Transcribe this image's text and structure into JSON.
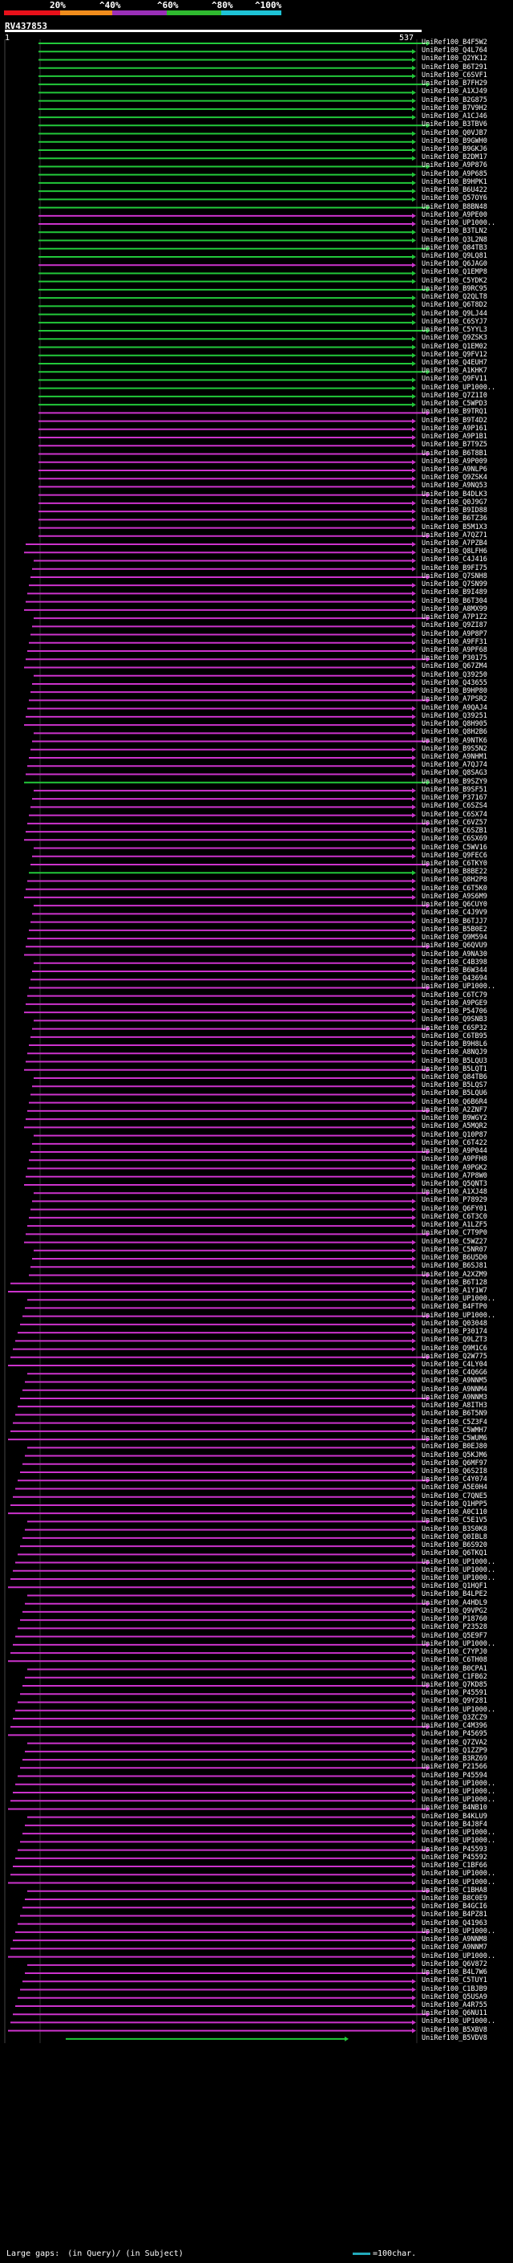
{
  "header": {
    "percent_labels": [
      "20%",
      "^40%",
      "^60%",
      "^80%",
      "^100%"
    ],
    "band_colors": [
      "#e8101a",
      "#f08c1c",
      "#9a2fb8",
      "#2fba2f",
      "#1ec3d6"
    ]
  },
  "query": {
    "id": "RV437853",
    "start": "1",
    "end": "537"
  },
  "colors": {
    "green": "#22c83a",
    "purple": "#cc33cc",
    "axis": "#6a6aff"
  },
  "hits": [
    "UniRef100_B4F5W2",
    "UniRef100_Q4L764",
    "UniRef100_Q2YK12",
    "UniRef100_B6T291",
    "UniRef100_C6SVF1",
    "UniRef100_B7FH29",
    "UniRef100_A1XJ49",
    "UniRef100_B2G875",
    "UniRef100_B7V9H2",
    "UniRef100_A1CJ46",
    "UniRef100_B3TBV6",
    "UniRef100_Q0VJB7",
    "UniRef100_B9GWH0",
    "UniRef100_B9GKJ6",
    "UniRef100_B2DM17",
    "UniRef100_A9P876",
    "UniRef100_A9P685",
    "UniRef100_B9HPK1",
    "UniRef100_B6U422",
    "UniRef100_Q57OY6",
    "UniRef100_B8BN48",
    "UniRef100_A9PE00",
    "UniRef100_UP1000..",
    "UniRef100_B3TLN2",
    "UniRef100_Q3L2N8",
    "UniRef100_Q84TB3",
    "UniRef100_Q9LQ81",
    "UniRef100_Q6JAG0",
    "UniRef100_Q1EMP8",
    "UniRef100_C5YDK2",
    "UniRef100_B9RC95",
    "UniRef100_Q2QLT8",
    "UniRef100_Q6T8D2",
    "UniRef100_Q9LJ44",
    "UniRef100_C6SYJ7",
    "UniRef100_C5YYL3",
    "UniRef100_Q9ZSK3",
    "UniRef100_Q1EM02",
    "UniRef100_Q9FV12",
    "UniRef100_Q4EUH7",
    "UniRef100_A1KHK7",
    "UniRef100_Q9FV11",
    "UniRef100_UP1000..",
    "UniRef100_Q7Z1I0",
    "UniRef100_C5WPD3",
    "UniRef100_B9TRQ1",
    "UniRef100_B9T4D2",
    "UniRef100_A9P161",
    "UniRef100_A9P1B1",
    "UniRef100_B7T9Z5",
    "UniRef100_B6T8B1",
    "UniRef100_A9P009",
    "UniRef100_A9NLP6",
    "UniRef100_Q9ZSK4",
    "UniRef100_A9NQ53",
    "UniRef100_B4DLK3",
    "UniRef100_Q0J9G7",
    "UniRef100_B9ID88",
    "UniRef100_B6TZ36",
    "UniRef100_B5M1X3",
    "UniRef100_A7QZ71",
    "UniRef100_A7PZB4",
    "UniRef100_Q8LFH6",
    "UniRef100_C4J416",
    "UniRef100_B9FI75",
    "UniRef100_Q7SNH8",
    "UniRef100_Q7SN99",
    "UniRef100_B9I489",
    "UniRef100_B6T304",
    "UniRef100_A8MX99",
    "UniRef100_A7P1Z2",
    "UniRef100_Q9ZI87",
    "UniRef100_A9P8P7",
    "UniRef100_A9FF31",
    "UniRef100_A9PF68",
    "UniRef100_P30175",
    "UniRef100_Q67ZM4",
    "UniRef100_Q39250",
    "UniRef100_Q43655",
    "UniRef100_B9HP80",
    "UniRef100_A7PSR2",
    "UniRef100_A9QAJ4",
    "UniRef100_Q39251",
    "UniRef100_Q8H905",
    "UniRef100_Q8H2B6",
    "UniRef100_A9NTK6",
    "UniRef100_B9S5N2",
    "UniRef100_A9NHM1",
    "UniRef100_A7QJ74",
    "UniRef100_Q8SAG3",
    "UniRef100_B9SZY9",
    "UniRef100_B9SF51",
    "UniRef100_P37167",
    "UniRef100_C6SZS4",
    "UniRef100_C6SX74",
    "UniRef100_C6VZ57",
    "UniRef100_C6SZB1",
    "UniRef100_C6SX69",
    "UniRef100_C5WV16",
    "UniRef100_Q9FEC6",
    "UniRef100_C6TKY0",
    "UniRef100_B8BE22",
    "UniRef100_Q8H2P8",
    "UniRef100_C6T5K0",
    "UniRef100_A9S6M9",
    "UniRef100_Q6CUY0",
    "UniRef100_C4J9V9",
    "UniRef100_B6TJJ7",
    "UniRef100_B5B0E2",
    "UniRef100_Q9M594",
    "UniRef100_Q6QVU9",
    "UniRef100_A9NA30",
    "UniRef100_C4B398",
    "UniRef100_B6W344",
    "UniRef100_Q43694",
    "UniRef100_UP1000..",
    "UniRef100_C6TC79",
    "UniRef100_A9PGE9",
    "UniRef100_P54706",
    "UniRef100_Q9SNB3",
    "UniRef100_C6SP32",
    "UniRef100_C6TB95",
    "UniRef100_B9H8L6",
    "UniRef100_A8NQJ9",
    "UniRef100_B5LQU3",
    "UniRef100_B5LQT1",
    "UniRef100_Q84TB6",
    "UniRef100_B5LQS7",
    "UniRef100_B5LQU6",
    "UniRef100_Q6B6R4",
    "UniRef100_A2ZNF7",
    "UniRef100_B9WGY2",
    "UniRef100_A5MQR2",
    "UniRef100_Q10P87",
    "UniRef100_C6T422",
    "UniRef100_A9P044",
    "UniRef100_A9PFH8",
    "UniRef100_A9PGK2",
    "UniRef100_A7P8W0",
    "UniRef100_Q5QNT3",
    "UniRef100_A1XJ48",
    "UniRef100_P78929",
    "UniRef100_Q6FY01",
    "UniRef100_C6T3C0",
    "UniRef100_A1LZF5",
    "UniRef100_C7T9P0",
    "UniRef100_C5WZ27",
    "UniRef100_C5NR07",
    "UniRef100_B6U5D0",
    "UniRef100_B6SJ81",
    "UniRef100_A2XZM9",
    "UniRef100_B6T128",
    "UniRef100_A1Y1W7",
    "UniRef100_UP1000..",
    "UniRef100_B4FTP0",
    "UniRef100_UP1000..",
    "UniRef100_Q03048",
    "UniRef100_P30174",
    "UniRef100_Q9LZT3",
    "UniRef100_Q9M1C6",
    "UniRef100_Q2W775",
    "UniRef100_C4LY04",
    "UniRef100_C4Q6G6",
    "UniRef100_A9NNM5",
    "UniRef100_A9NNM4",
    "UniRef100_A9NNM3",
    "UniRef100_A8ITH3",
    "UniRef100_B6T5N9",
    "UniRef100_C5Z3F4",
    "UniRef100_C5WMH7",
    "UniRef100_C5WUM6",
    "UniRef100_B0EJ80",
    "UniRef100_Q5KJM6",
    "UniRef100_Q6MF97",
    "UniRef100_Q6S2I8",
    "UniRef100_C4Y074",
    "UniRef100_A5E0H4",
    "UniRef100_C7QNE5",
    "UniRef100_Q1HPP5",
    "UniRef100_A0C110",
    "UniRef100_C5E1V5",
    "UniRef100_B3S0K8",
    "UniRef100_Q0IBL8",
    "UniRef100_B6S920",
    "UniRef100_Q6TKQ1",
    "UniRef100_UP1000..",
    "UniRef100_UP1000..",
    "UniRef100_UP1000..",
    "UniRef100_Q1HQF1",
    "UniRef100_B4LPE2",
    "UniRef100_A4HDL9",
    "UniRef100_Q9VPG2",
    "UniRef100_P18760",
    "UniRef100_P23528",
    "UniRef100_Q5E9F7",
    "UniRef100_UP1000..",
    "UniRef100_C7YPJ0",
    "UniRef100_C6TH08",
    "UniRef100_B0CPA1",
    "UniRef100_C1FB62",
    "UniRef100_Q7KD85",
    "UniRef100_P45591",
    "UniRef100_Q9Y281",
    "UniRef100_UP1000..",
    "UniRef100_Q3ZCZ9",
    "UniRef100_C4M396",
    "UniRef100_P45695",
    "UniRef100_Q7ZVA2",
    "UniRef100_Q1ZZP9",
    "UniRef100_B3RZ69",
    "UniRef100_P21566",
    "UniRef100_P45594",
    "UniRef100_UP1000..",
    "UniRef100_UP1000..",
    "UniRef100_UP1000..",
    "UniRef100_B4NB10",
    "UniRef100_B4KLU9",
    "UniRef100_B4J8F4",
    "UniRef100_UP1000..",
    "UniRef100_UP1000..",
    "UniRef100_P45593",
    "UniRef100_P45592",
    "UniRef100_C1BF66",
    "UniRef100_UP1000..",
    "UniRef100_UP1000..",
    "UniRef100_C1BHA8",
    "UniRef100_B8C0E9",
    "UniRef100_B4GCI6",
    "UniRef100_B4PZ81",
    "UniRef100_Q41963",
    "UniRef100_UP1000..",
    "UniRef100_A9NNM8",
    "UniRef100_A9NNM7",
    "UniRef100_UP1000..",
    "UniRef100_Q6V872",
    "UniRef100_B4L7W6",
    "UniRef100_C5TUY1",
    "UniRef100_C1BJB9",
    "UniRef100_Q5USA9",
    "UniRef100_A4R755",
    "UniRef100_Q6NU11",
    "UniRef100_UP1000..",
    "UniRef100_B5XBV8",
    "UniRef100_B5VDV8"
  ],
  "legend": {
    "large_gaps_label": "Large gaps:",
    "in_query_label": "(in Query)/",
    "in_subject_label": "(in Subject)",
    "scale_label": "=100char."
  }
}
